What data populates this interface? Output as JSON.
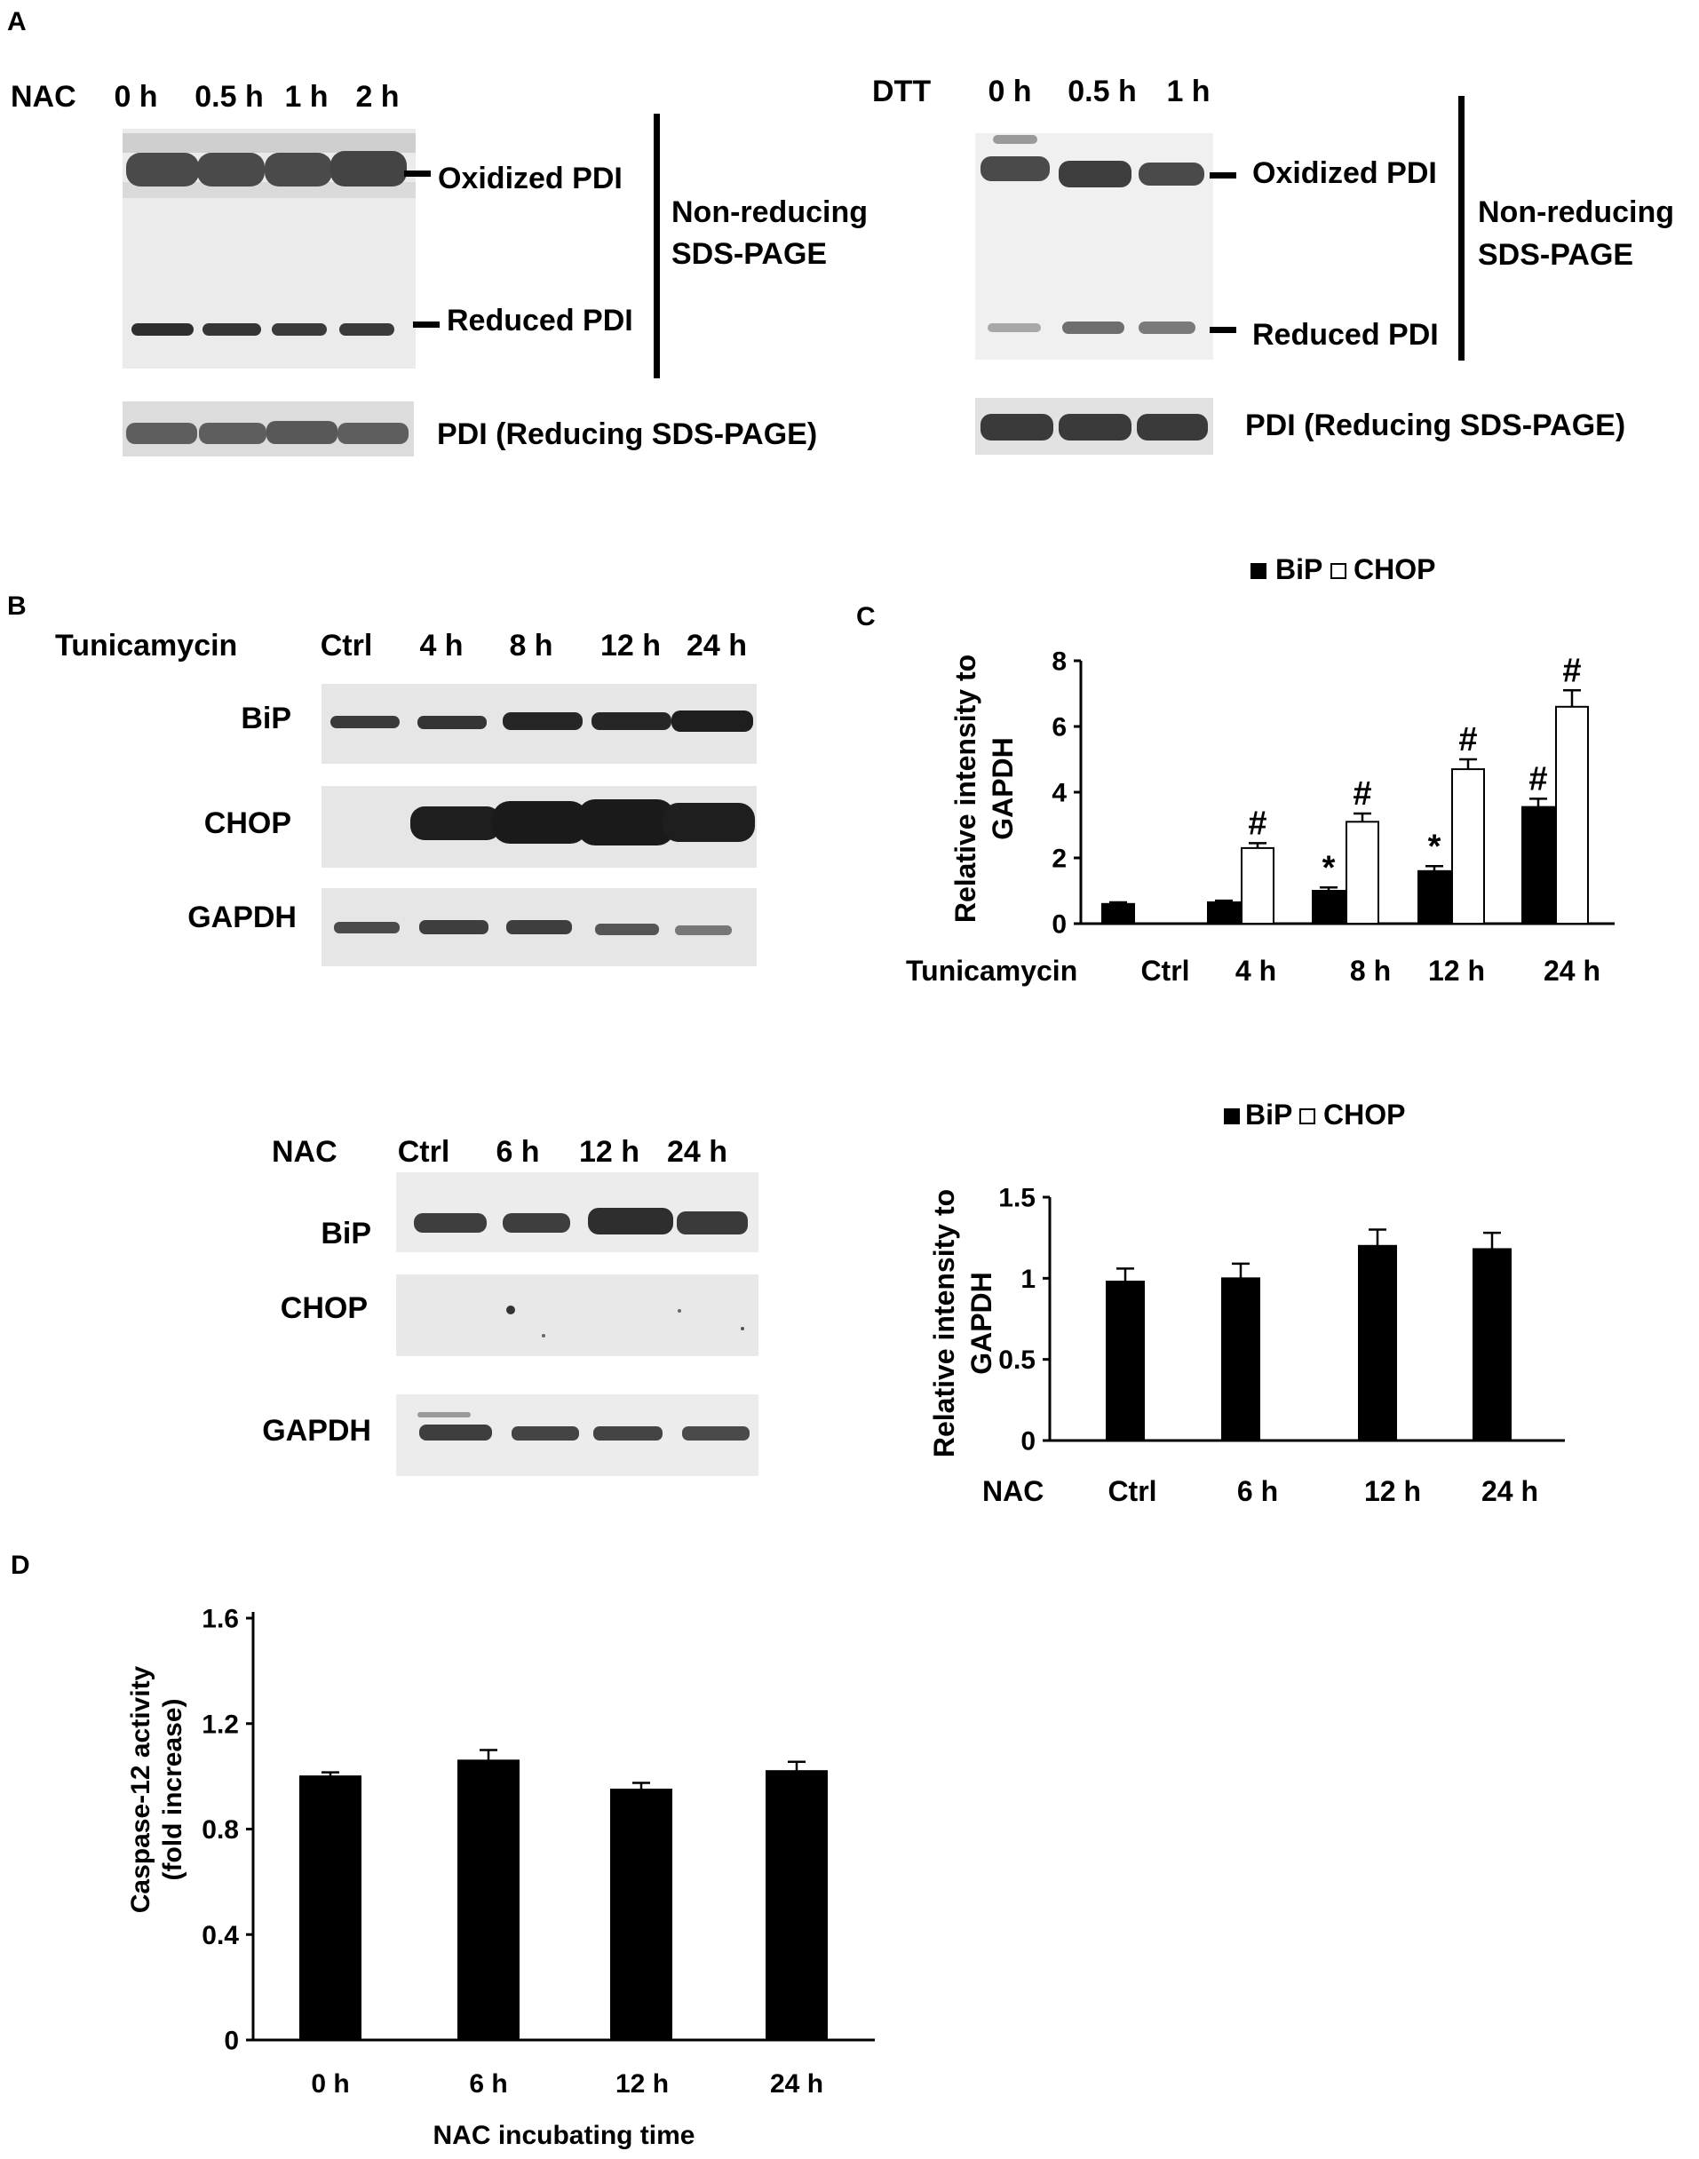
{
  "panel_a": {
    "letter": "A",
    "left": {
      "treatment": "NAC",
      "lanes": [
        "0 h",
        "0.5 h",
        "1 h",
        "2 h"
      ],
      "oxidized_label": "Oxidized PDI",
      "reduced_label": "Reduced PDI",
      "gel_note_1": "Non-reducing",
      "gel_note_2": "SDS-PAGE",
      "reducing_label": "PDI (Reducing SDS-PAGE)"
    },
    "right": {
      "treatment": "DTT",
      "lanes": [
        "0 h",
        "0.5 h",
        "1 h"
      ],
      "oxidized_label": "Oxidized PDI",
      "reduced_label": "Reduced PDI",
      "gel_note_1": "Non-reducing",
      "gel_note_2": "SDS-PAGE",
      "reducing_label": "PDI (Reducing SDS-PAGE)"
    }
  },
  "panel_b": {
    "letter": "B",
    "tunicamycin_blot": {
      "treatment": "Tunicamycin",
      "lanes": [
        "Ctrl",
        "4 h",
        "8 h",
        "12 h",
        "24 h"
      ],
      "rows": [
        "BiP",
        "CHOP",
        "GAPDH"
      ]
    },
    "nac_blot": {
      "treatment": "NAC",
      "lanes": [
        "Ctrl",
        "6 h",
        "12 h",
        "24 h"
      ],
      "rows": [
        "BiP",
        "CHOP",
        "GAPDH"
      ]
    }
  },
  "panel_c": {
    "letter": "C"
  },
  "panel_d": {
    "letter": "D"
  },
  "colors": {
    "bip": "#000000",
    "chop": "#ffffff",
    "background": "#ffffff"
  },
  "chart_data": [
    {
      "id": "c-top",
      "type": "bar",
      "legend": [
        "BiP",
        "CHOP"
      ],
      "legend_position": "top",
      "ylabel_lines": [
        "Relative intensity to",
        "GAPDH"
      ],
      "row_label": "Tunicamycin",
      "categories": [
        "Ctrl",
        "4 h",
        "8 h",
        "12 h",
        "24 h"
      ],
      "yticks": [
        "0",
        "2",
        "4",
        "6",
        "8"
      ],
      "ylim": [
        0,
        8
      ],
      "series": [
        {
          "name": "BiP",
          "values": [
            0.6,
            0.65,
            1.0,
            1.6,
            3.55
          ],
          "errors": [
            0.05,
            0.05,
            0.1,
            0.15,
            0.25
          ],
          "markers": [
            "",
            "",
            "*",
            "*",
            "#"
          ]
        },
        {
          "name": "CHOP",
          "values": [
            0.0,
            2.3,
            3.1,
            4.7,
            6.6
          ],
          "errors": [
            0.0,
            0.15,
            0.25,
            0.3,
            0.5
          ],
          "markers": [
            "",
            "#",
            "#",
            "#",
            "#"
          ]
        }
      ]
    },
    {
      "id": "c-bottom",
      "type": "bar",
      "legend": [
        "BiP",
        "CHOP"
      ],
      "legend_position": "top",
      "ylabel_lines": [
        "Relative intensity to",
        "GAPDH"
      ],
      "row_label": "NAC",
      "categories": [
        "Ctrl",
        "6 h",
        "12 h",
        "24 h"
      ],
      "yticks": [
        "0",
        "0.5",
        "1",
        "1.5"
      ],
      "ylim": [
        0,
        1.5
      ],
      "series": [
        {
          "name": "BiP",
          "values": [
            0.98,
            1.0,
            1.2,
            1.18
          ],
          "errors": [
            0.08,
            0.09,
            0.1,
            0.1
          ]
        }
      ]
    },
    {
      "id": "d",
      "type": "bar",
      "ylabel_lines": [
        "Caspase-12 activity",
        "(fold increase)"
      ],
      "xlabel": "NAC incubating time",
      "categories": [
        "0 h",
        "6 h",
        "12 h",
        "24 h"
      ],
      "yticks": [
        "0",
        "0.4",
        "0.8",
        "1.2",
        "1.6"
      ],
      "ylim": [
        0,
        1.6
      ],
      "series": [
        {
          "values": [
            1.0,
            1.06,
            0.95,
            1.02
          ],
          "errors": [
            0.015,
            0.04,
            0.025,
            0.035
          ]
        }
      ]
    }
  ]
}
